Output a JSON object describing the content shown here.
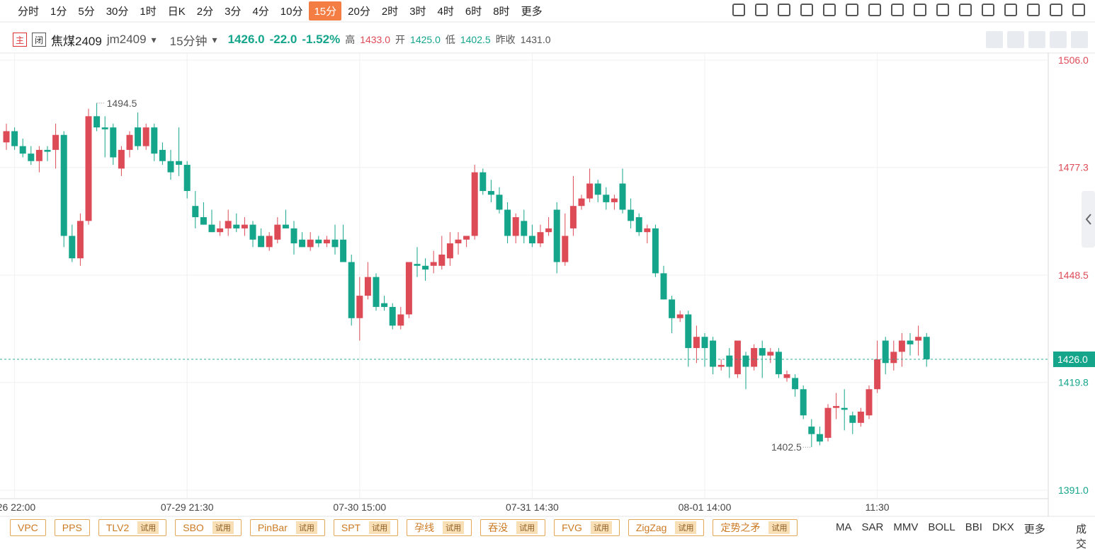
{
  "toolbar": {
    "periods": [
      "分时",
      "1分",
      "5分",
      "30分",
      "1时",
      "日K",
      "2分",
      "3分",
      "4分",
      "10分",
      "15分",
      "20分",
      "2时",
      "3时",
      "4时",
      "6时",
      "8时",
      "更多"
    ]
  },
  "header": {
    "badge_main": "主",
    "badge_close": "闭",
    "name": "焦煤2409",
    "code": "jm2409",
    "period": "15分钟",
    "price": "1426.0",
    "change": "-22.0",
    "change_pct": "-1.52%",
    "high_label": "高",
    "high": "1433.0",
    "open_label": "开",
    "open": "1425.0",
    "low_label": "低",
    "low": "1402.5",
    "prev_label": "昨收",
    "prev": "1431.0"
  },
  "indicators": [
    {
      "name": "VPC"
    },
    {
      "name": "PPS"
    },
    {
      "name": "TLV2",
      "tag": "试用"
    },
    {
      "name": "SBO",
      "tag": "试用"
    },
    {
      "name": "PinBar",
      "tag": "试用"
    },
    {
      "name": "SPT",
      "tag": "试用"
    },
    {
      "name": "孕线",
      "tag": "试用"
    },
    {
      "name": "吞没",
      "tag": "试用"
    },
    {
      "name": "FVG",
      "tag": "试用"
    },
    {
      "name": "ZigZag",
      "tag": "试用"
    },
    {
      "name": "定势之矛",
      "tag": "试用"
    }
  ],
  "main_indicators": [
    "MA",
    "SAR",
    "MMV",
    "BOLL",
    "BBI",
    "DKX",
    "更多"
  ],
  "side_tab": "成交",
  "chart_data": {
    "type": "candlestick",
    "categories": [
      null,
      "-26 22:00",
      null,
      null,
      null,
      null,
      null,
      null,
      null,
      null,
      null,
      null,
      null,
      null,
      null,
      null,
      null,
      null,
      null,
      null,
      null,
      null,
      "07-29 21:30",
      null,
      null,
      null,
      null,
      null,
      null,
      null,
      null,
      null,
      null,
      null,
      null,
      null,
      null,
      null,
      null,
      null,
      null,
      null,
      null,
      "07-30 15:00",
      null,
      null,
      null,
      null,
      null,
      null,
      null,
      null,
      null,
      null,
      null,
      null,
      null,
      null,
      null,
      null,
      null,
      null,
      null,
      null,
      "07-31 14:30",
      null,
      null,
      null,
      null,
      null,
      null,
      null,
      null,
      null,
      null,
      null,
      null,
      null,
      null,
      null,
      null,
      null,
      null,
      null,
      null,
      "08-01 14:00",
      null,
      null,
      null,
      null,
      null,
      null,
      null,
      null,
      null,
      null,
      null,
      null,
      null,
      null,
      null,
      null,
      null,
      null,
      null,
      null,
      "11:30",
      null,
      null,
      null,
      null,
      null,
      null
    ],
    "open": [
      1484,
      1487,
      1483,
      1481,
      1479,
      1482,
      1482,
      1486,
      1459,
      1453,
      1463,
      1491,
      1488,
      1488,
      1477,
      1482,
      1488,
      1483,
      1488,
      1482,
      1479,
      1479,
      1478,
      1467,
      1464,
      1462,
      1460,
      1461,
      1462,
      1461,
      1462,
      1459,
      1456,
      1458,
      1462,
      1461,
      1458,
      1456,
      1458,
      1457,
      1458,
      1458,
      1452,
      1437,
      1443,
      1448,
      1441,
      1440,
      1435,
      1438,
      1451.5,
      1451,
      1451,
      1451,
      1453,
      1457,
      1458,
      1459,
      1476,
      1471,
      1470,
      1466,
      1459,
      1463,
      1459,
      1457,
      1460,
      1466,
      1452,
      1461,
      1467,
      1469,
      1473,
      1470,
      1468,
      1473,
      1466,
      1464,
      1460,
      1461,
      1449,
      1442,
      1437,
      1438,
      1429,
      1432,
      1431,
      1424,
      1427,
      1422,
      1427,
      1424,
      1429,
      1427,
      1428,
      1421,
      1421,
      1418,
      1408,
      1406,
      1405,
      1413,
      1413,
      1411,
      1409,
      1411,
      1418,
      1431,
      1425,
      1428,
      1431,
      1431,
      1432
    ],
    "high": [
      1489,
      1488,
      1485,
      1483,
      1483,
      1483,
      1489,
      1487,
      1462,
      1465,
      1493,
      1494.5,
      1491,
      1489,
      1483,
      1487,
      1492,
      1489,
      1489,
      1484,
      1482,
      1488,
      1479,
      1471,
      1468,
      1466,
      1463,
      1466,
      1465,
      1464,
      1463,
      1461,
      1460,
      1464,
      1466,
      1463,
      1460,
      1460,
      1459,
      1459,
      1462,
      1462,
      1454,
      1448,
      1452,
      1449,
      1443,
      1441,
      1440,
      1452,
      1456,
      1453,
      1455,
      1459,
      1460,
      1460,
      1459,
      1478,
      1477,
      1474,
      1472,
      1468,
      1465,
      1466,
      1462,
      1462,
      1464,
      1468,
      1465,
      1475,
      1470,
      1477,
      1474,
      1472,
      1470,
      1477,
      1469,
      1465,
      1462,
      1462,
      1451,
      1443,
      1439,
      1439,
      1435,
      1433,
      1432,
      1426,
      1429,
      1431,
      1428,
      1430,
      1431,
      1429,
      1429,
      1423,
      1422,
      1419,
      1410,
      1408,
      1414,
      1417,
      1418,
      1412,
      1413,
      1419,
      1431,
      1432,
      1431,
      1433,
      1433,
      1435,
      1433
    ],
    "low": [
      1482,
      1482,
      1480,
      1478,
      1476,
      1479,
      1477,
      1456,
      1452,
      1451,
      1462,
      1487,
      1480,
      1478,
      1475,
      1480,
      1482,
      1482,
      1479,
      1478,
      1474,
      1475,
      1469,
      1461,
      1462,
      1460,
      1459,
      1459,
      1460,
      1459,
      1456,
      1456,
      1455,
      1457,
      1461,
      1454,
      1456,
      1455,
      1456,
      1456,
      1454,
      1452,
      1435,
      1431,
      1442,
      1439,
      1439,
      1434,
      1434,
      1437,
      1448,
      1447,
      1449,
      1450,
      1451,
      1454,
      1456,
      1458,
      1470,
      1468,
      1465,
      1457,
      1457,
      1457,
      1456,
      1456,
      1459,
      1449,
      1451,
      1459,
      1466,
      1468,
      1468,
      1466,
      1466,
      1465,
      1461,
      1459,
      1457,
      1448,
      1442,
      1433,
      1436,
      1424,
      1425,
      1424,
      1422,
      1423,
      1421,
      1421,
      1418,
      1423,
      1421,
      1425,
      1421,
      1420,
      1416,
      1410,
      1402.5,
      1403,
      1404,
      1410,
      1407,
      1406,
      1408,
      1410,
      1417,
      1422,
      1423,
      1424,
      1427,
      1427,
      1424
    ],
    "close": [
      1487,
      1483,
      1481,
      1479,
      1482,
      1481.5,
      1486,
      1459,
      1453,
      1463,
      1491,
      1488,
      1487.5,
      1480,
      1482,
      1486,
      1483,
      1488,
      1481,
      1479,
      1476,
      1478,
      1471,
      1464,
      1462,
      1460,
      1461,
      1463,
      1461,
      1462,
      1458,
      1456,
      1459,
      1462,
      1461,
      1457,
      1456,
      1458,
      1457,
      1458,
      1456,
      1452,
      1437,
      1443,
      1448,
      1440,
      1440,
      1435,
      1438,
      1452,
      1451,
      1450,
      1452,
      1454,
      1457,
      1458,
      1459,
      1476,
      1471,
      1470,
      1466,
      1459,
      1464,
      1459,
      1457,
      1460,
      1461,
      1452,
      1459,
      1467,
      1469,
      1473,
      1470,
      1468,
      1469,
      1466,
      1463,
      1460,
      1461,
      1449,
      1442,
      1437,
      1438,
      1429,
      1432,
      1429,
      1424,
      1424.5,
      1424,
      1431,
      1424,
      1429,
      1427,
      1428,
      1422,
      1422,
      1418,
      1411,
      1406,
      1404,
      1413,
      1413.5,
      1412.5,
      1409,
      1412,
      1418,
      1426,
      1425,
      1428,
      1431,
      1430,
      1432,
      1426
    ],
    "up_color": "#dd4b57",
    "down_color": "#14a58b",
    "ylim": [
      1391,
      1506
    ],
    "yticks": [
      {
        "value": 1391,
        "label": "1391.0"
      },
      {
        "value": 1419.8,
        "label": "1419.8"
      },
      {
        "value": 1448.5,
        "label": "1448.5"
      },
      {
        "value": 1477.3,
        "label": "1477.3"
      },
      {
        "value": 1506,
        "label": "1506.0"
      }
    ],
    "last_price": {
      "value": 1426,
      "label": "1426.0"
    },
    "grid": true
  }
}
